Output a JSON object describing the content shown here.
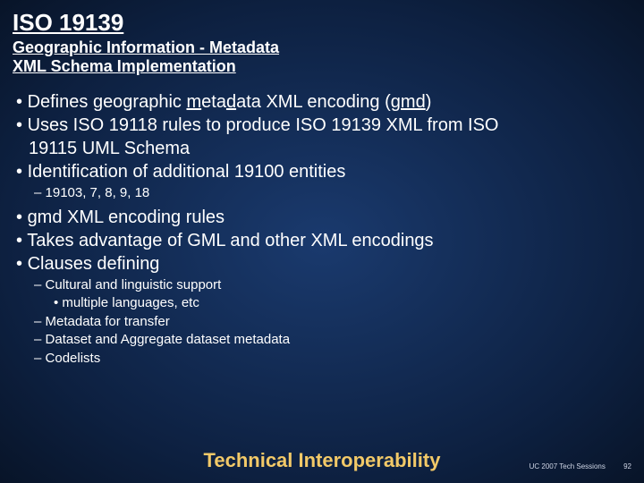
{
  "colors": {
    "background_center": "#1a3a6e",
    "background_outer": "#081428",
    "text": "#ffffff",
    "accent": "#f2c968",
    "footer_text": "#cfd6e6"
  },
  "typography": {
    "title_fontsize": 26,
    "subtitle_fontsize": 18,
    "bullet1_fontsize": 20,
    "bullet2_fontsize": 15,
    "bullet3_fontsize": 15,
    "footer_title_fontsize": 22,
    "footer_right_fontsize": 8,
    "font_family": "Arial"
  },
  "title": "ISO 19139",
  "subtitle_line1": "Geographic Information - Metadata",
  "subtitle_line2": "XML Schema Implementation",
  "b1_pre": "Defines ",
  "b1_u1": "g",
  "b1_mid1": "eographic ",
  "b1_u2": "m",
  "b1_mid2": "eta",
  "b1_u3": "d",
  "b1_mid3": "ata XML encoding (",
  "b1_u4": "gmd",
  "b1_post": ")",
  "b2_line1": "Uses ISO 19118 rules to produce ISO 19139 XML from ISO",
  "b2_line2": "19115 UML Schema",
  "b3": "Identification of additional 19100 entities",
  "b3_sub": "19103, 7, 8, 9, 18",
  "b4": "gmd XML encoding rules",
  "b5": "Takes advantage of GML and other XML encodings",
  "b6": "Clauses defining",
  "b6_s1": "Cultural and linguistic support",
  "b6_s1_1": "multiple languages, etc",
  "b6_s2": "Metadata for transfer",
  "b6_s3": "Dataset and Aggregate dataset metadata",
  "b6_s4": "Codelists",
  "footer_title": "Technical Interoperability",
  "footer_session": "UC 2007 Tech Sessions",
  "footer_page": "92"
}
